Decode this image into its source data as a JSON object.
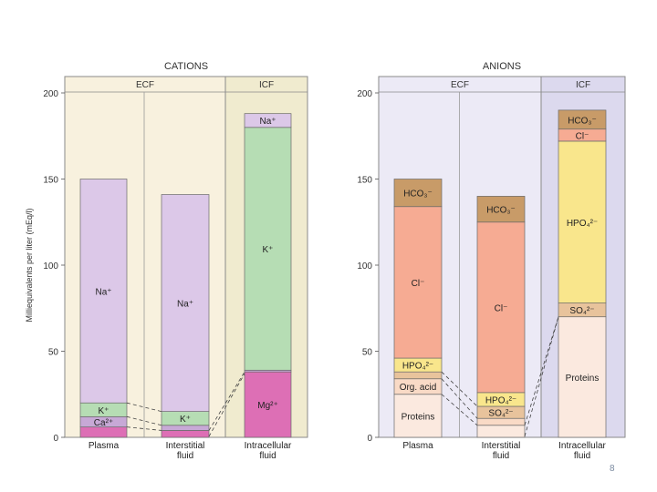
{
  "slide": {
    "page_number": "8"
  },
  "colors": {
    "ecf_cations_bg": "#f8f1de",
    "icf_cations_bg": "#f0ebcf",
    "ecf_anions_bg": "#eceaf6",
    "icf_anions_bg": "#dcd9ee",
    "panel_border": "#8a8a8a",
    "Na": "#dcc8e8",
    "K": "#b6ddb4",
    "Ca": "#c7a9d6",
    "Mg": "#dd6fb5",
    "HCO3": "#c89b68",
    "Cl": "#f6ab93",
    "HPO4": "#f9e68c",
    "SO4": "#e8c39c",
    "OrgAcid": "#f9dac6",
    "Proteins": "#fbe9df"
  },
  "chart_data": [
    {
      "type": "bar",
      "stacked": true,
      "title": "CATIONS",
      "ylabel": "Milliequivalents per liter (mEq/l)",
      "ylim": [
        0,
        200
      ],
      "yticks": [
        "0",
        "50",
        "100",
        "150",
        "200"
      ],
      "regions": [
        "ECF",
        "ICF"
      ],
      "categories": [
        "Plasma",
        "Interstitial fluid",
        "Intracellular fluid"
      ],
      "category_lines": [
        [
          "Plasma"
        ],
        [
          "Interstitial",
          "fluid"
        ],
        [
          "Intracellular",
          "fluid"
        ]
      ],
      "region_of_category": [
        "ECF",
        "ECF",
        "ICF"
      ],
      "series": [
        {
          "name": "Mg",
          "label": "Mg²⁺",
          "color_key": "Mg",
          "values": [
            6,
            4,
            38
          ]
        },
        {
          "name": "Ca",
          "label": "Ca²⁺",
          "color_key": "Ca",
          "values": [
            6,
            3,
            1
          ]
        },
        {
          "name": "K",
          "label": "K⁺",
          "color_key": "K",
          "values": [
            8,
            8,
            141
          ]
        },
        {
          "name": "Na",
          "label": "Na⁺",
          "color_key": "Na",
          "values": [
            130,
            126,
            8
          ]
        }
      ],
      "segment_labels": [
        [
          null,
          "Ca²⁺",
          "K⁺",
          "Na⁺"
        ],
        [
          null,
          null,
          "K⁺",
          "Na⁺"
        ],
        [
          "Mg²⁺",
          null,
          "K⁺",
          "Na⁺"
        ]
      ]
    },
    {
      "type": "bar",
      "stacked": true,
      "title": "ANIONS",
      "ylim": [
        0,
        200
      ],
      "yticks": [
        "0",
        "50",
        "100",
        "150",
        "200"
      ],
      "regions": [
        "ECF",
        "ICF"
      ],
      "categories": [
        "Plasma",
        "Interstitial fluid",
        "Intracellular fluid"
      ],
      "category_lines": [
        [
          "Plasma"
        ],
        [
          "Interstitial",
          "fluid"
        ],
        [
          "Intracellular",
          "fluid"
        ]
      ],
      "region_of_category": [
        "ECF",
        "ECF",
        "ICF"
      ],
      "series": [
        {
          "name": "Proteins",
          "label": "Proteins",
          "color_key": "Proteins",
          "values": [
            25,
            7,
            70
          ]
        },
        {
          "name": "Org. acid",
          "label": "Org. acid",
          "color_key": "OrgAcid",
          "values": [
            9,
            4,
            0
          ]
        },
        {
          "name": "SO4",
          "label": "SO₄²⁻",
          "color_key": "SO4",
          "values": [
            4,
            7,
            8
          ]
        },
        {
          "name": "HPO4",
          "label": "HPO₄²⁻",
          "color_key": "HPO4",
          "values": [
            8,
            8,
            94
          ]
        },
        {
          "name": "Cl",
          "label": "Cl⁻",
          "color_key": "Cl",
          "values": [
            88,
            99,
            7
          ]
        },
        {
          "name": "HCO3",
          "label": "HCO₃⁻",
          "color_key": "HCO3",
          "values": [
            16,
            15,
            11
          ]
        }
      ],
      "segment_labels": [
        [
          "Proteins",
          "Org. acid",
          null,
          "HPO₄²⁻",
          "Cl⁻",
          "HCO₃⁻"
        ],
        [
          null,
          null,
          "SO₄²⁻",
          "HPO₄²⁻",
          "Cl⁻",
          "HCO₃⁻"
        ],
        [
          "Proteins",
          null,
          "SO₄²⁻",
          "HPO₄²⁻",
          "Cl⁻",
          "HCO₃⁻"
        ]
      ]
    }
  ]
}
